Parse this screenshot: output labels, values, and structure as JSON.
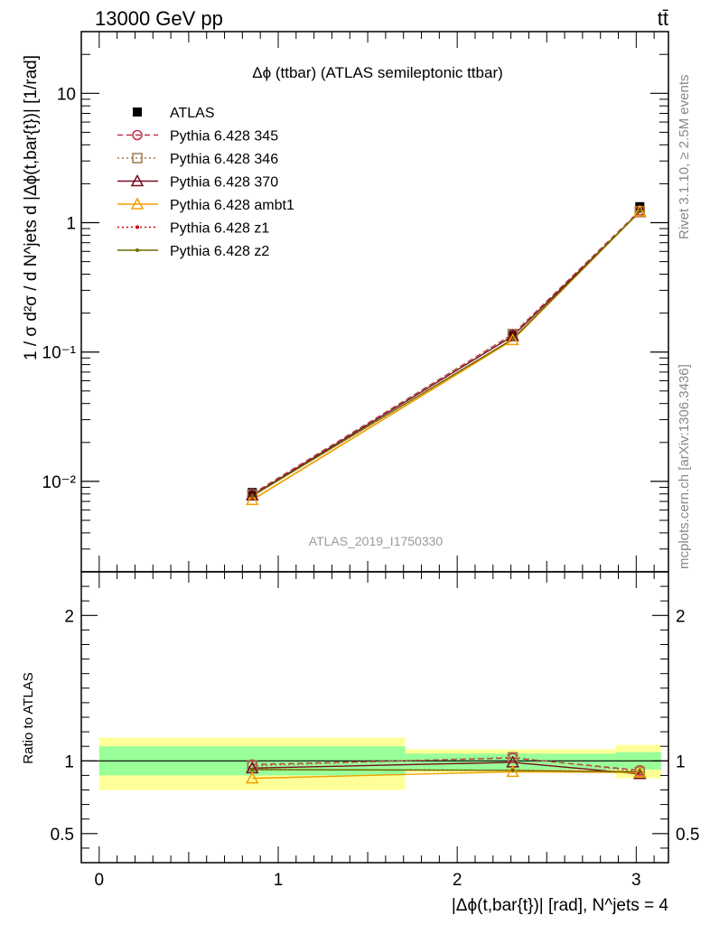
{
  "header": {
    "energy_label": "13000 GeV pp",
    "process_label": "tt̄"
  },
  "side": {
    "rivet_label": "Rivet 3.1.10, ≥ 2.5M events",
    "source_label": "mcplots.cern.ch [arXiv:1306.3436]"
  },
  "chart_data": [
    {
      "type": "line",
      "title": "Δϕ (ttbar) (ATLAS semileptonic ttbar)",
      "xlabel": "|Δϕ(t,bar{t})| [rad], N^jets = 4",
      "ylabel": "1 / σ d²σ / d N^jets d |Δϕ(t,bar{t})| [1/rad]",
      "watermark": "ATLAS_2019_I1750330",
      "xlim": [
        -0.1,
        3.18
      ],
      "ylim": [
        0.002,
        30
      ],
      "log_y": true,
      "y_ticks": [
        "10⁻²",
        "10⁻¹",
        "1",
        "10"
      ],
      "x_ticks": [
        "0",
        "1",
        "2",
        "3"
      ],
      "legend_position": "top-left",
      "x": [
        0.855,
        2.31,
        3.02
      ],
      "bins": [
        [
          0,
          1.71
        ],
        [
          1.71,
          2.885
        ],
        [
          2.885,
          3.1416
        ]
      ],
      "series": [
        {
          "name": "ATLAS",
          "values": [
            0.0082,
            0.135,
            1.33
          ],
          "color": "#000000",
          "marker": "square-filled",
          "dash": "none"
        },
        {
          "name": "Pythia 6.428 345",
          "values": [
            0.008,
            0.137,
            1.24
          ],
          "color": "#c0304a",
          "marker": "circle-open",
          "dash": "dashed"
        },
        {
          "name": "Pythia 6.428 346",
          "values": [
            0.0079,
            0.138,
            1.23
          ],
          "color": "#a07848",
          "marker": "square-open",
          "dash": "dotted"
        },
        {
          "name": "Pythia 6.428 370",
          "values": [
            0.0078,
            0.133,
            1.21
          ],
          "color": "#7a0a1e",
          "marker": "triangle-open",
          "dash": "solid"
        },
        {
          "name": "Pythia 6.428 ambt1",
          "values": [
            0.0072,
            0.124,
            1.22
          ],
          "color": "#f0a000",
          "marker": "triangle-open",
          "dash": "solid"
        },
        {
          "name": "Pythia 6.428 z1",
          "values": [
            0.0077,
            0.126,
            1.22
          ],
          "color": "#d00000",
          "marker": "dot",
          "dash": "dotted"
        },
        {
          "name": "Pythia 6.428 z2",
          "values": [
            0.0077,
            0.126,
            1.22
          ],
          "color": "#6b6b00",
          "marker": "dot",
          "dash": "solid"
        }
      ]
    },
    {
      "type": "line",
      "ylabel": "Ratio to ATLAS",
      "xlim": [
        -0.1,
        3.18
      ],
      "ylim": [
        0.3,
        2.3
      ],
      "y_ticks": [
        "0.5",
        "1",
        "2"
      ],
      "x": [
        0.855,
        2.31,
        3.02
      ],
      "bands": {
        "yellow": [
          [
            0.8,
            1.16
          ],
          [
            0.92,
            1.08
          ],
          [
            0.88,
            1.11
          ]
        ],
        "green": [
          [
            0.9,
            1.1
          ],
          [
            0.94,
            1.05
          ],
          [
            0.94,
            1.06
          ]
        ]
      },
      "series": [
        {
          "name": "Pythia 6.428 345",
          "values": [
            0.975,
            1.02,
            0.935
          ]
        },
        {
          "name": "Pythia 6.428 346",
          "values": [
            0.965,
            1.025,
            0.925
          ]
        },
        {
          "name": "Pythia 6.428 370",
          "values": [
            0.95,
            0.99,
            0.91
          ]
        },
        {
          "name": "Pythia 6.428 ambt1",
          "values": [
            0.88,
            0.925,
            0.92
          ]
        },
        {
          "name": "Pythia 6.428 z1",
          "values": [
            0.94,
            0.935,
            0.925
          ]
        },
        {
          "name": "Pythia 6.428 z2",
          "values": [
            0.94,
            0.935,
            0.925
          ]
        }
      ]
    }
  ]
}
